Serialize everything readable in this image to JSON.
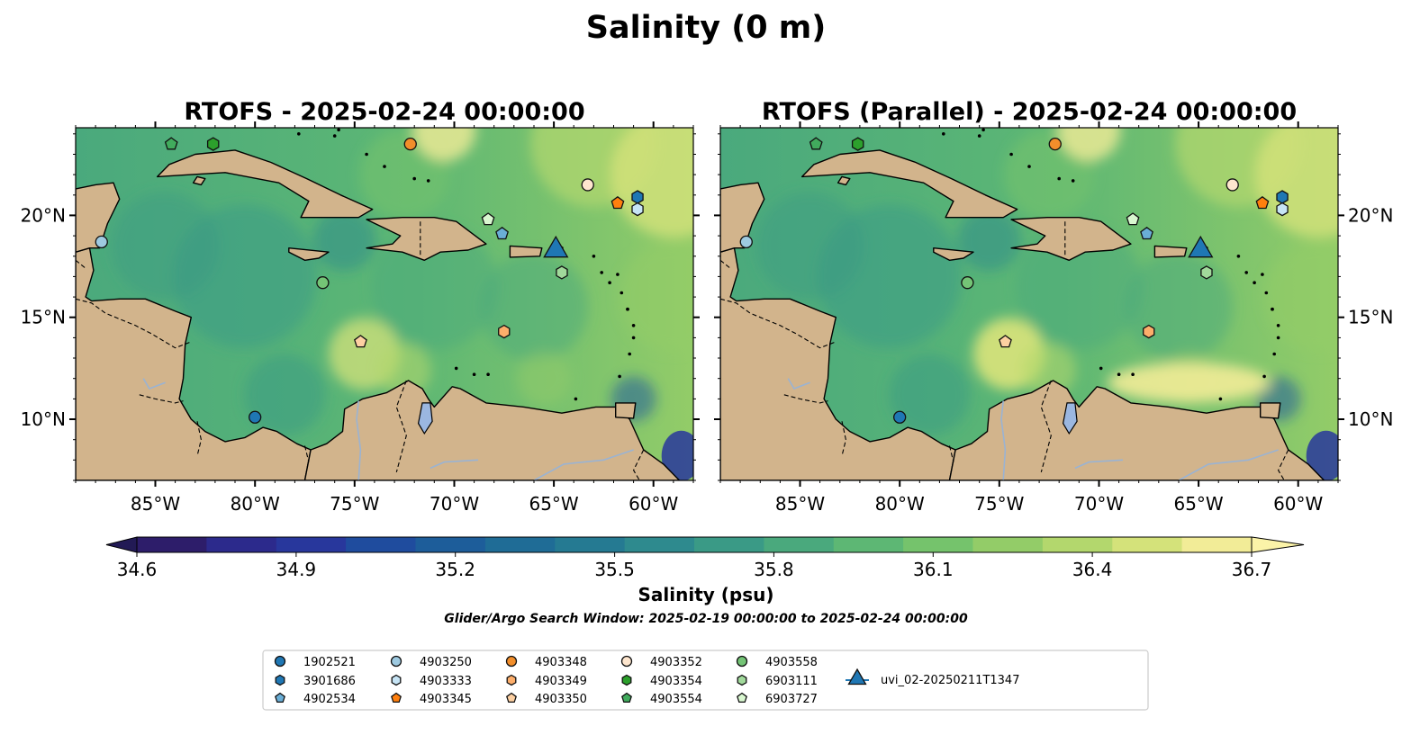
{
  "figure": {
    "suptitle": "Salinity (0 m)",
    "search_window": "Glider/Argo Search Window: 2025-02-19 00:00:00 to 2025-02-24 00:00:00"
  },
  "chart_data": [
    {
      "type": "heatmap",
      "title": "RTOFS - 2025-02-24 00:00:00",
      "field": "sea surface salinity (map)",
      "lon_range": [
        -89,
        -58
      ],
      "lat_range": [
        7,
        24.3
      ],
      "x_ticks": [
        {
          "value": -85,
          "label": "85°W"
        },
        {
          "value": -80,
          "label": "80°W"
        },
        {
          "value": -75,
          "label": "75°W"
        },
        {
          "value": -70,
          "label": "70°W"
        },
        {
          "value": -65,
          "label": "65°W"
        },
        {
          "value": -60,
          "label": "60°W"
        }
      ],
      "y_ticks": [
        {
          "value": 10,
          "label": "10°N"
        },
        {
          "value": 15,
          "label": "15°N"
        },
        {
          "value": 20,
          "label": "20°N"
        }
      ],
      "y_ticks_side": "left",
      "grid": false
    },
    {
      "type": "heatmap",
      "title": "RTOFS (Parallel) - 2025-02-24 00:00:00",
      "field": "sea surface salinity (map)",
      "lon_range": [
        -89,
        -58
      ],
      "lat_range": [
        7,
        24.3
      ],
      "x_ticks": [
        {
          "value": -85,
          "label": "85°W"
        },
        {
          "value": -80,
          "label": "80°W"
        },
        {
          "value": -75,
          "label": "75°W"
        },
        {
          "value": -70,
          "label": "70°W"
        },
        {
          "value": -65,
          "label": "65°W"
        },
        {
          "value": -60,
          "label": "60°W"
        }
      ],
      "y_ticks": [
        {
          "value": 10,
          "label": "10°N"
        },
        {
          "value": 15,
          "label": "15°N"
        },
        {
          "value": 20,
          "label": "20°N"
        }
      ],
      "y_ticks_side": "right",
      "grid": false
    }
  ],
  "colorbar": {
    "label": "Salinity (psu)",
    "range": [
      34.6,
      36.7
    ],
    "ticks": [
      "34.6",
      "34.9",
      "35.2",
      "35.5",
      "35.8",
      "36.1",
      "36.4",
      "36.7"
    ],
    "colors": [
      "#2d1d6a",
      "#2c2a8c",
      "#28379c",
      "#1f4c9e",
      "#1d5d9a",
      "#1f6c96",
      "#257a92",
      "#2e8a8e",
      "#3a9a86",
      "#4aa97d",
      "#5db774",
      "#75c36c",
      "#93cc68",
      "#b3d76d",
      "#d4e27a",
      "#f2ec97"
    ],
    "extend": "both"
  },
  "map_colors": {
    "land": "#d2b48c",
    "deep_fill": "#2b1d66",
    "river": "#9ab3d3",
    "lake": "#9bb7e0"
  },
  "legend": {
    "placement": "bottom-center",
    "items": [
      {
        "label": "1902521",
        "marker": "circle",
        "color": "#1f77b4"
      },
      {
        "label": "3901686",
        "marker": "hexagon",
        "color": "#1f77b4"
      },
      {
        "label": "4902534",
        "marker": "pentagon",
        "color": "#6aaed6"
      },
      {
        "label": "4903250",
        "marker": "circle",
        "color": "#9ecae1"
      },
      {
        "label": "4903333",
        "marker": "hexagon",
        "color": "#c6e4f5"
      },
      {
        "label": "4903345",
        "marker": "pentagon",
        "color": "#ff7f0e"
      },
      {
        "label": "4903348",
        "marker": "circle",
        "color": "#f28e2b"
      },
      {
        "label": "4903349",
        "marker": "hexagon",
        "color": "#fdae6b"
      },
      {
        "label": "4903350",
        "marker": "pentagon",
        "color": "#fdd0a2"
      },
      {
        "label": "4903352",
        "marker": "circle",
        "color": "#fee6ce"
      },
      {
        "label": "4903354",
        "marker": "hexagon",
        "color": "#2ca02c"
      },
      {
        "label": "4903554",
        "marker": "pentagon",
        "color": "#41ab5d"
      },
      {
        "label": "4903558",
        "marker": "circle",
        "color": "#74c476"
      },
      {
        "label": "6903111",
        "marker": "hexagon",
        "color": "#a1d99b"
      },
      {
        "label": "6903727",
        "marker": "pentagon",
        "color": "#d9f7d0"
      },
      {
        "label": "uvi_02-20250211T1347",
        "marker": "triangle",
        "color": "#1f77b4"
      }
    ]
  },
  "platforms_lonlat": [
    {
      "id": "1902521",
      "lon": -80.0,
      "lat": 10.1
    },
    {
      "id": "3901686",
      "lon": -60.8,
      "lat": 20.9
    },
    {
      "id": "4902534",
      "lon": -67.6,
      "lat": 19.1
    },
    {
      "id": "4903250",
      "lon": -87.7,
      "lat": 18.7
    },
    {
      "id": "4903333",
      "lon": -60.8,
      "lat": 20.3
    },
    {
      "id": "4903345",
      "lon": -61.8,
      "lat": 20.6
    },
    {
      "id": "4903348",
      "lon": -72.2,
      "lat": 23.5
    },
    {
      "id": "4903349",
      "lon": -67.5,
      "lat": 14.3
    },
    {
      "id": "4903350",
      "lon": -74.7,
      "lat": 13.8
    },
    {
      "id": "4903352",
      "lon": -63.3,
      "lat": 21.5
    },
    {
      "id": "4903354",
      "lon": -82.1,
      "lat": 23.5
    },
    {
      "id": "4903554",
      "lon": -84.2,
      "lat": 23.5
    },
    {
      "id": "4903558",
      "lon": -76.6,
      "lat": 16.7
    },
    {
      "id": "6903111",
      "lon": -64.6,
      "lat": 17.2
    },
    {
      "id": "6903727",
      "lon": -68.3,
      "lat": 19.8
    },
    {
      "id": "uvi_02-20250211T1347",
      "lon": -64.9,
      "lat": 18.2
    }
  ]
}
